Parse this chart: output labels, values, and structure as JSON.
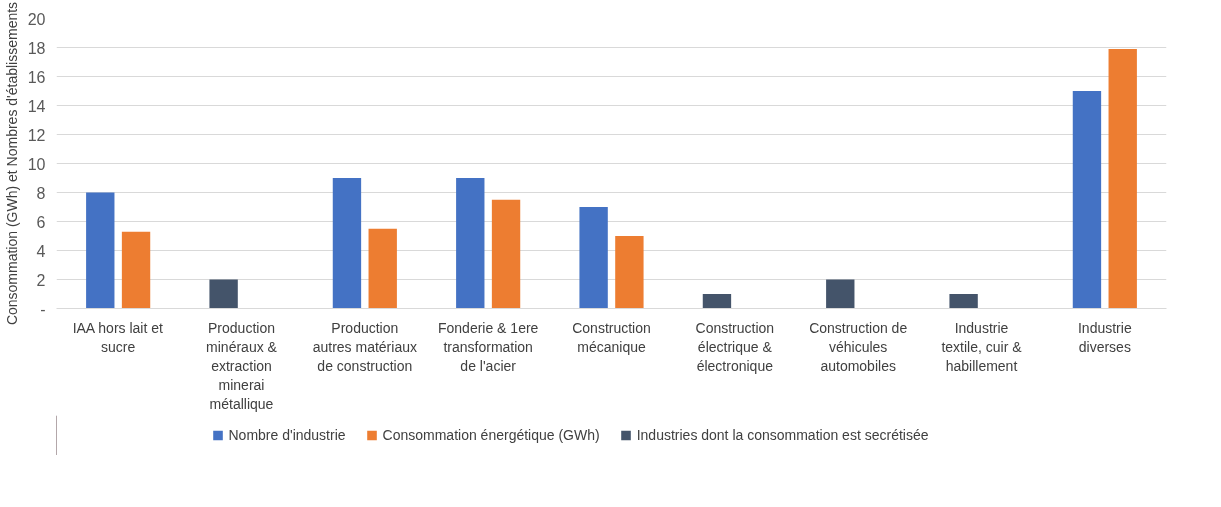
{
  "chart_data": {
    "type": "bar",
    "ylabel": "Consommation (GWh) et Nombres d'établissements",
    "categories": [
      "IAA hors lait et sucre",
      "Production minéraux & extraction minerai métallique",
      "Production autres matériaux de construction",
      "Fonderie & 1ere transformation de l'acier",
      "Construction mécanique",
      "Construction électrique & électronique",
      "Construction de véhicules automobiles",
      "Industrie textile, cuir & habillement",
      "Industrie diverses"
    ],
    "series": [
      {
        "name": "Nombre d'industrie",
        "color": "#4472c4",
        "values": [
          8,
          null,
          9,
          9,
          7,
          null,
          null,
          null,
          15
        ]
      },
      {
        "name": "Consommation énergétique (GWh)",
        "color": "#ed7d31",
        "values": [
          5.3,
          null,
          5.5,
          7.5,
          5,
          null,
          null,
          null,
          17.9
        ]
      },
      {
        "name": "Industries dont la consommation est secrétisée",
        "color": "#44546a",
        "values": [
          null,
          2,
          null,
          null,
          null,
          1,
          2,
          1,
          null
        ]
      }
    ],
    "ylim": [
      0,
      20
    ],
    "yticks": [
      {
        "value": 0,
        "label": "-"
      },
      2,
      4,
      6,
      8,
      10,
      12,
      14,
      16,
      18,
      20
    ],
    "grid": "y",
    "legend": "bottom"
  }
}
